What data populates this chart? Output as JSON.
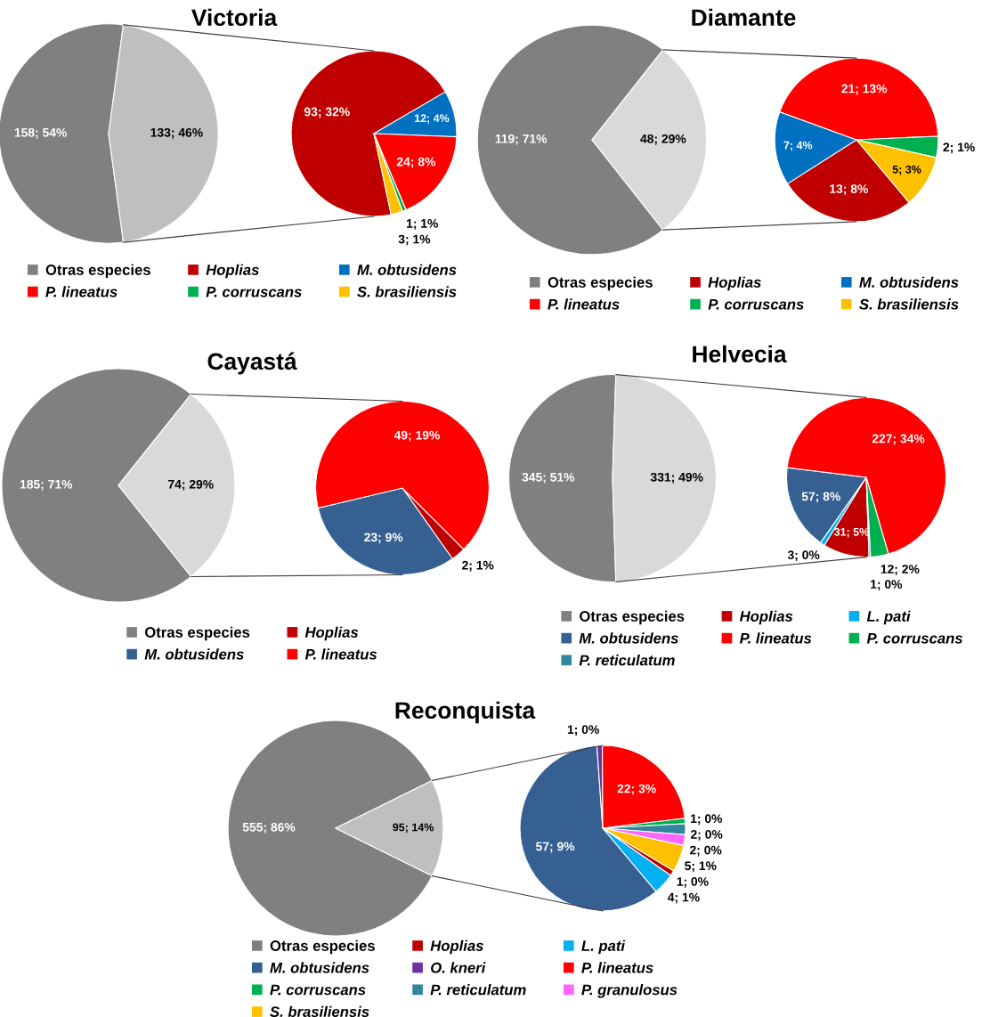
{
  "chart_data": [
    {
      "type": "pie",
      "title": "Victoria",
      "categories": [
        "Otras especies",
        null
      ],
      "values": [
        158,
        133
      ],
      "colors": [
        "#808080",
        "#bfbfbf"
      ],
      "value_labels": [
        "158; 54%",
        "133; 46%"
      ],
      "legend": "bottom"
    },
    {
      "type": "pie",
      "categories": [
        "Hoplias",
        "M. obtusidens",
        "P. lineatus",
        "P. corruscans",
        "S. brasiliensis"
      ],
      "values": [
        93,
        12,
        24,
        1,
        3
      ],
      "colors": [
        "#c00000",
        "#0070c0",
        "#ff0000",
        "#00b050",
        "#ffc000"
      ],
      "value_labels": [
        "93; 32%",
        "12; 4%",
        "24; 8%",
        "1; 1%",
        "3; 1%"
      ],
      "legend": "bottom"
    },
    {
      "type": "pie",
      "title": "Diamante",
      "categories": [
        "Otras especies",
        null
      ],
      "values": [
        119,
        48
      ],
      "colors": [
        "#808080",
        "#d9d9d9"
      ],
      "value_labels": [
        "119; 71%",
        "48; 29%"
      ],
      "legend": "bottom"
    },
    {
      "type": "pie",
      "categories": [
        "Hoplias",
        "M. obtusidens",
        "P. lineatus",
        "P. corruscans",
        "S. brasiliensis"
      ],
      "values": [
        13,
        7,
        21,
        2,
        5
      ],
      "colors": [
        "#c00000",
        "#0070c0",
        "#ff0000",
        "#00b050",
        "#ffc000"
      ],
      "value_labels": [
        "13; 8%",
        "7; 4%",
        "21; 13%",
        "2; 1%",
        "5; 3%"
      ],
      "legend": "bottom"
    },
    {
      "type": "pie",
      "title": "Cayastá",
      "categories": [
        "Otras especies",
        null
      ],
      "values": [
        185,
        74
      ],
      "colors": [
        "#808080",
        "#d9d9d9"
      ],
      "value_labels": [
        "185; 71%",
        "74; 29%"
      ],
      "legend": "bottom"
    },
    {
      "type": "pie",
      "categories": [
        "Hoplias",
        "M. obtusidens",
        "P. lineatus"
      ],
      "values": [
        2,
        23,
        49
      ],
      "colors": [
        "#c00000",
        "#376092",
        "#ff0000"
      ],
      "value_labels": [
        "2; 1%",
        "23; 9%",
        "49; 19%"
      ],
      "legend": "bottom"
    },
    {
      "type": "pie",
      "title": "Helvecia",
      "categories": [
        "Otras especies",
        null
      ],
      "values": [
        345,
        331
      ],
      "colors": [
        "#808080",
        "#d9d9d9"
      ],
      "value_labels": [
        "345; 51%",
        "331; 49%"
      ],
      "legend": "bottom"
    },
    {
      "type": "pie",
      "categories": [
        "Hoplias",
        "L. pati",
        "M. obtusidens",
        "P. lineatus",
        "P. corruscans",
        "P. reticulatum"
      ],
      "values": [
        31,
        3,
        57,
        227,
        12,
        1
      ],
      "colors": [
        "#c00000",
        "#00b0f0",
        "#376092",
        "#ff0000",
        "#00b050",
        "#31859c"
      ],
      "value_labels": [
        "31; 5%",
        "3; 0%",
        "57; 8%",
        "227; 34%",
        "12; 2%",
        "1; 0%"
      ],
      "legend": "bottom"
    },
    {
      "type": "pie",
      "title": "Reconquista",
      "categories": [
        "Otras especies",
        null
      ],
      "values": [
        555,
        95
      ],
      "colors": [
        "#808080",
        "#bfbfbf"
      ],
      "value_labels": [
        "555; 86%",
        "95; 14%"
      ],
      "legend": "bottom"
    },
    {
      "type": "pie",
      "categories": [
        "Hoplias",
        "L. pati",
        "M. obtusidens",
        "O. kneri",
        "P. lineatus",
        "P. corruscans",
        "P. reticulatum",
        "P. granulosus",
        "S. brasiliensis"
      ],
      "values": [
        1,
        4,
        57,
        1,
        22,
        1,
        2,
        2,
        5
      ],
      "colors": [
        "#c00000",
        "#00b0f0",
        "#376092",
        "#7030a0",
        "#ff0000",
        "#00b050",
        "#31859c",
        "#ff66ff",
        "#ffc000"
      ],
      "value_labels": [
        "1; 0%",
        "4; 1%",
        "57; 9%",
        "1; 0%",
        "22; 3%",
        "1; 0%",
        "2; 0%",
        "2; 0%",
        "5; 1%"
      ],
      "legend": "bottom"
    }
  ]
}
